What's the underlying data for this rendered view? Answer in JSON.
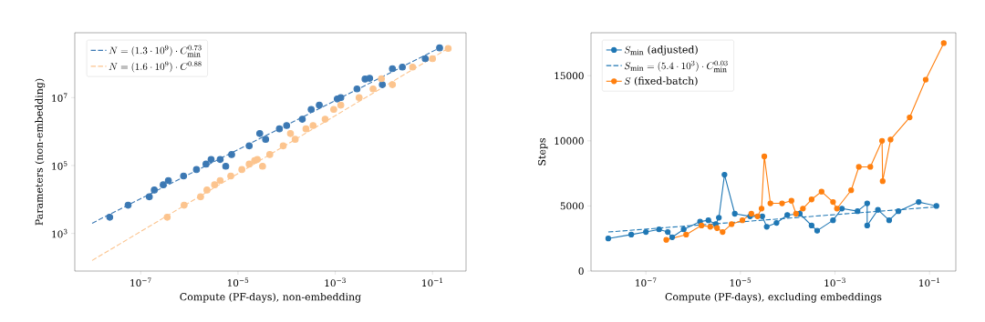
{
  "chart_data": [
    {
      "type": "scatter",
      "xlabel": "Compute (PF-days), non-embedding",
      "ylabel": "Parameters (non-embedding)",
      "log": "xy",
      "legend": "top left",
      "xlim": [
        4.4e-09,
        0.49
      ],
      "ylim": [
        78,
        810000000.0
      ],
      "xticks": [
        {
          "value": 1e-07,
          "label": "10$^{−7}$"
        },
        {
          "value": 1e-05,
          "label": "10$^{−5}$"
        },
        {
          "value": 0.001,
          "label": "10$^{−3}$"
        },
        {
          "value": 0.1,
          "label": "10$^{−1}$"
        }
      ],
      "yticks": [
        {
          "value": 1000.0,
          "label": "10$^{3}$"
        },
        {
          "value": 100000.0,
          "label": "10$^{5}$"
        },
        {
          "value": 10000000.0,
          "label": "10$^{7}$"
        }
      ],
      "series": [
        {
          "color": "#3b78b3",
          "marker": "circle",
          "x": [
            2.3e-08,
            5.5e-08,
            1.5e-07,
            1.9e-07,
            2.9e-07,
            3.7e-07,
            7.6e-07,
            1.4e-06,
            2.2e-06,
            2.8e-06,
            4.3e-06,
            5.6e-06,
            7.4e-06,
            1.7e-05,
            2.8e-05,
            3.7e-05,
            7.1e-05,
            0.0001,
            0.00021,
            0.00032,
            0.00047,
            0.0011,
            0.0013,
            0.0028,
            0.0041,
            0.0051,
            0.0093,
            0.015,
            0.024,
            0.071,
            0.14
          ],
          "values": [
            3000.0,
            6800.0,
            12000.0,
            19000.0,
            27000.0,
            36000.0,
            49000.0,
            76000.0,
            110000.0,
            150000.0,
            150000.0,
            95000.0,
            210000.0,
            380000.0,
            870000.0,
            590000.0,
            1200000.0,
            1500000.0,
            2300000.0,
            4500000.0,
            6000000.0,
            9100000.0,
            10000000.0,
            18000000.0,
            35000000.0,
            37000000.0,
            24000000.0,
            71000000.0,
            79000000.0,
            140000000.0,
            290000000.0
          ]
        },
        {
          "color": "#fcc48e",
          "marker": "circle",
          "x": [
            3.5e-07,
            7.8e-07,
            1.7e-06,
            2.3e-06,
            3.3e-06,
            4.3e-06,
            7.1e-06,
            1.2e-05,
            1.7e-05,
            2.2e-05,
            2.5e-05,
            3.2e-05,
            4.5e-05,
            8.5e-05,
            0.00012,
            0.00015,
            0.00025,
            0.00035,
            0.00062,
            0.00093,
            0.0013,
            0.0031,
            0.006,
            0.0089,
            0.015,
            0.039,
            0.1,
            0.21
          ],
          "values": [
            3000.0,
            6800.0,
            12000.0,
            19000.0,
            27000.0,
            36000.0,
            49000.0,
            76000.0,
            110000.0,
            140000.0,
            150000.0,
            95000.0,
            210000.0,
            380000.0,
            870000.0,
            590000.0,
            1200000.0,
            1500000.0,
            2300000.0,
            4500000.0,
            6000000.0,
            10000000.0,
            18000000.0,
            36000000.0,
            24000000.0,
            79000000.0,
            140000000.0,
            280000000.0
          ]
        },
        {
          "type": "line",
          "name": "N=(1.3\\cdot 10^{9})\\cdot C_{\\min}^{0.73}",
          "color": "#3b78b3",
          "marker": "none",
          "line_style": "dashed",
          "x": [
            1e-08,
            0.14
          ],
          "values": [
            2000.0,
            290000000.0
          ]
        },
        {
          "type": "line",
          "name": "N=(1.6\\cdot 10^{9})\\cdot C^{0.88}",
          "color": "#fcc48e",
          "marker": "none",
          "line_style": "dashed",
          "x": [
            1e-08,
            0.21
          ],
          "values": [
            160.0,
            280000000.0
          ]
        }
      ]
    },
    {
      "type": "line",
      "xlabel": "Compute (PF-days), excluding embeddings",
      "ylabel": "Steps",
      "log": "x",
      "legend": "top left",
      "xlim": [
        6.9e-09,
        0.36
      ],
      "ylim": [
        0,
        18300
      ],
      "xticks": [
        {
          "value": 1e-07,
          "label": "10$^{−7}$"
        },
        {
          "value": 1e-05,
          "label": "10$^{−5}$"
        },
        {
          "value": 0.001,
          "label": "10$^{−3}$"
        },
        {
          "value": 0.1,
          "label": "10$^{−1}$"
        }
      ],
      "yticks": [
        0,
        5000,
        10000,
        15000
      ],
      "series": [
        {
          "name": "S_{\\min}\\mbox{ (adjusted)}",
          "color": "#1f77b4",
          "marker": "circle",
          "line_style": "solid",
          "x": [
            1.6e-08,
            4.9e-08,
            1e-07,
            1.9e-07,
            2.9e-07,
            3.6e-07,
            6.3e-07,
            1.4e-06,
            2.1e-06,
            3e-06,
            3.5e-06,
            4.6e-06,
            7.6e-06,
            1.6e-05,
            2.9e-05,
            3.6e-05,
            5.8e-05,
            9.8e-05,
            0.00018,
            0.00032,
            0.00042,
            0.00091,
            0.0014,
            0.003,
            0.0048,
            0.0048,
            0.0081,
            0.014,
            0.022,
            0.059,
            0.14
          ],
          "values": [
            2500,
            2800,
            3000,
            3200,
            3000,
            2600,
            3200,
            3800,
            3900,
            3600,
            4100,
            7400,
            4400,
            4200,
            4200,
            3400,
            3700,
            4300,
            4400,
            3500,
            3100,
            3900,
            4800,
            4600,
            5200,
            3500,
            4700,
            3900,
            4600,
            5300,
            5000
          ]
        },
        {
          "name": "S_{\\min}=(5.4\\cdot 10^{3})\\cdot C_{\\min}^{0.03}",
          "color": "#1f77b4",
          "marker": "none",
          "line_style": "dashed",
          "x": [
            1.6e-08,
            0.14
          ],
          "values": [
            3000,
            4930
          ]
        },
        {
          "name": "S\\mbox{ (fixed-batch)}",
          "color": "#ff7f0e",
          "marker": "circle",
          "line_style": "solid",
          "x": [
            2.7e-07,
            7.1e-07,
            1.5e-06,
            2.3e-06,
            3.2e-06,
            4.2e-06,
            6.5e-06,
            1.1e-05,
            1.7e-05,
            2.3e-05,
            2.8e-05,
            3.2e-05,
            4.3e-05,
            7.6e-05,
            0.00012,
            0.00015,
            0.00021,
            0.00032,
            0.00052,
            0.00091,
            0.0011,
            0.0022,
            0.0032,
            0.0056,
            0.0099,
            0.0102,
            0.015,
            0.038,
            0.083,
            0.2
          ],
          "values": [
            2400,
            2800,
            3500,
            3400,
            3300,
            3000,
            3600,
            3900,
            4400,
            4200,
            4800,
            8800,
            5200,
            5200,
            5400,
            4400,
            4800,
            5500,
            6100,
            5300,
            4800,
            6200,
            8000,
            8000,
            10000,
            6900,
            10100,
            11800,
            14700,
            17500
          ]
        }
      ]
    }
  ]
}
